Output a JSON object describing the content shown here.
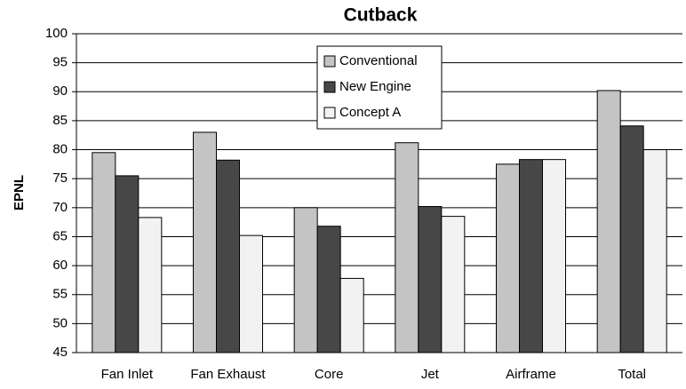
{
  "chart_data": {
    "type": "bar",
    "title": "Cutback",
    "y_label": "EPNL",
    "categories": [
      "Fan Inlet",
      "Fan Exhaust",
      "Core",
      "Jet",
      "Airframe",
      "Total"
    ],
    "series": [
      {
        "name": "Conventional",
        "color": "#c4c4c4",
        "values": [
          79.5,
          83,
          70,
          81.2,
          77.5,
          90.2
        ]
      },
      {
        "name": "New Engine",
        "color": "#474747",
        "values": [
          75.5,
          78.2,
          66.8,
          70.2,
          78.3,
          84.1
        ]
      },
      {
        "name": "Concept A",
        "color": "#f2f2f2",
        "values": [
          68.3,
          65.2,
          57.8,
          68.5,
          78.3,
          80
        ]
      }
    ],
    "ylim": [
      45,
      100
    ],
    "yticks": [
      45,
      50,
      55,
      60,
      65,
      70,
      75,
      80,
      85,
      90,
      95,
      100
    ],
    "grid": true,
    "legend": "top-center"
  }
}
